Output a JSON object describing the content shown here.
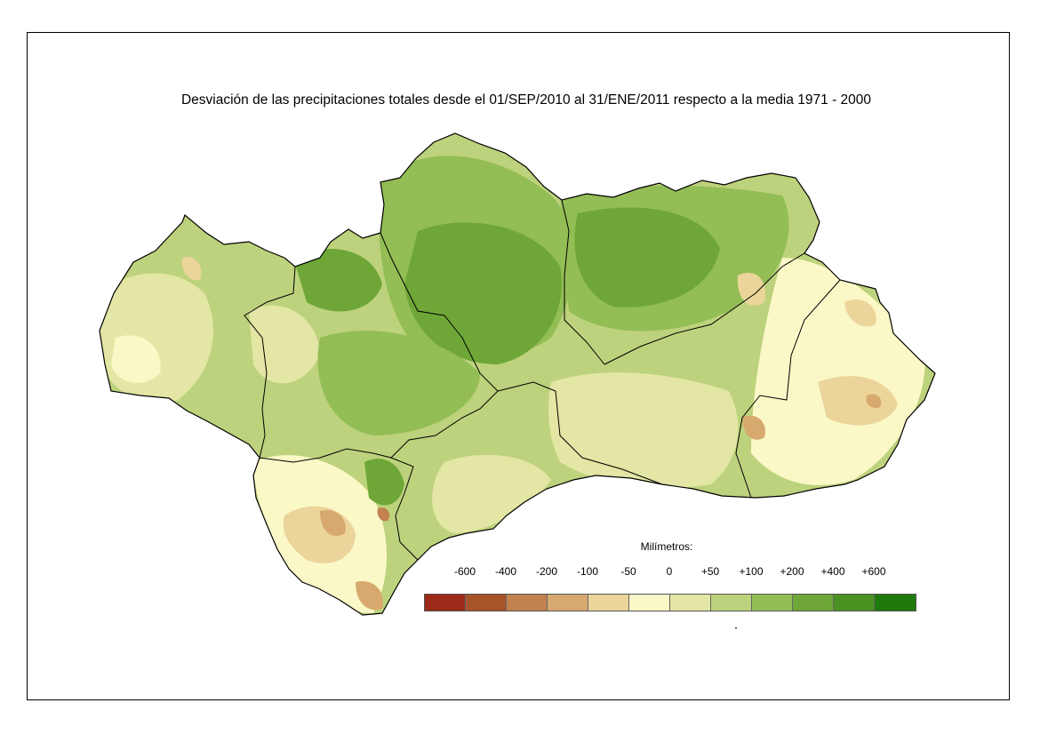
{
  "title": "Desviación de las precipitaciones totales desde el 01/SEP/2010 al  31/ENE/2011 respecto a la media 1971 - 2000",
  "legend": {
    "title": "Milímetros:",
    "ticks": [
      "-600",
      "-400",
      "-200",
      "-100",
      "-50",
      "0",
      "+50",
      "+100",
      "+200",
      "+400",
      "+600"
    ],
    "colors": [
      "#9b2a18",
      "#a8542a",
      "#c2814f",
      "#d8a96f",
      "#ebd59a",
      "#fbf8c8",
      "#e3e6a4",
      "#bdd27c",
      "#93bd55",
      "#6ea737",
      "#4b9223",
      "#1f7a0c"
    ]
  },
  "map": {
    "region_fill_colors": {
      "deviation_positive_high": "#6ea737",
      "deviation_positive_mid": "#93bd55",
      "deviation_positive_low": "#bdd27c",
      "deviation_near_zero": "#e3e6a4",
      "deviation_zero": "#fbf8c8",
      "deviation_negative_low": "#ebd59a",
      "deviation_negative_mid": "#d8a96f",
      "deviation_negative_high": "#c2814f",
      "deviation_negative_extreme": "#a8542a"
    }
  }
}
